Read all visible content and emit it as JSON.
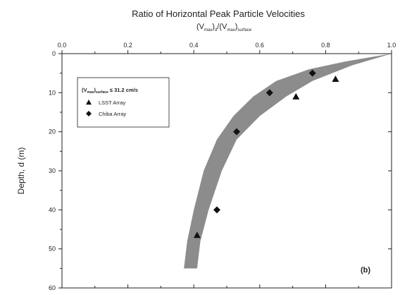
{
  "chart_data": {
    "type": "scatter",
    "title": "Ratio of Horizontal Peak Particle Velocities",
    "subtitle": {
      "open": "(V",
      "sub1": "max",
      "mid1": ")",
      "sub2": "d",
      "mid2": "/(V",
      "sub3": "max",
      "mid3": ")",
      "sub4": "surface"
    },
    "ylabel": "Depth, d (m)",
    "xlim": [
      0,
      1.0
    ],
    "ylim": [
      0,
      60
    ],
    "y_inverted": true,
    "x_axis_position": "top",
    "x_ticks": [
      "0.0",
      "0.2",
      "0.4",
      "0.6",
      "0.8",
      "1.0"
    ],
    "y_ticks": [
      "0",
      "10",
      "20",
      "30",
      "40",
      "50",
      "60"
    ],
    "grid": false,
    "legend": {
      "placement": "top-left",
      "condition": {
        "open": "(V",
        "sub1": "max",
        "mid": ")",
        "sub2": "surface",
        "rest": " ≤ 31.2 cm/s"
      }
    },
    "series": [
      {
        "name": "LSST Array",
        "marker": "triangle",
        "points": [
          [
            0.41,
            46.5
          ],
          [
            0.71,
            11.0
          ],
          [
            0.83,
            6.5
          ]
        ]
      },
      {
        "name": "Chiba Array",
        "marker": "diamond",
        "points": [
          [
            0.47,
            40.0
          ],
          [
            0.53,
            20.0
          ],
          [
            0.63,
            10.0
          ],
          [
            0.76,
            5.0
          ]
        ]
      }
    ],
    "band": {
      "color": "#8c8c8c",
      "upper": [
        [
          1.0,
          0
        ],
        [
          0.88,
          3.0
        ],
        [
          0.76,
          7.0
        ],
        [
          0.68,
          11.0
        ],
        [
          0.6,
          16.0
        ],
        [
          0.53,
          22.0
        ],
        [
          0.485,
          30.0
        ],
        [
          0.445,
          40.0
        ],
        [
          0.42,
          48.0
        ],
        [
          0.41,
          55.0
        ]
      ],
      "lower": [
        [
          0.37,
          55.0
        ],
        [
          0.38,
          48.0
        ],
        [
          0.4,
          40.0
        ],
        [
          0.43,
          30.0
        ],
        [
          0.47,
          22.0
        ],
        [
          0.52,
          16.0
        ],
        [
          0.58,
          11.0
        ],
        [
          0.65,
          7.0
        ],
        [
          0.75,
          4.0
        ],
        [
          0.86,
          2.0
        ],
        [
          1.0,
          0
        ]
      ]
    },
    "annotation": "(b)"
  }
}
